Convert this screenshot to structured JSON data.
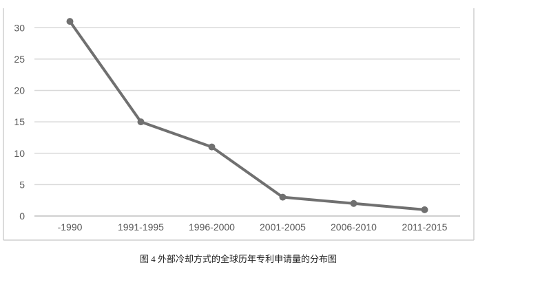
{
  "caption": "图 4 外部冷却方式的全球历年专利申请量的分布图",
  "colors": {
    "line": "#707070",
    "grid": "#d9d9d9",
    "axis": "#bfbfbf",
    "frame": "#cfcfcf"
  },
  "chart_data": {
    "type": "line",
    "categories": [
      "-1990",
      "1991-1995",
      "1996-2000",
      "2001-2005",
      "2006-2010",
      "2011-2015"
    ],
    "series": [
      {
        "values": [
          31,
          15,
          11,
          3,
          2,
          1
        ]
      }
    ],
    "yticks": [
      "0",
      "5",
      "10",
      "15",
      "20",
      "25",
      "30"
    ],
    "ylim": [
      0,
      32
    ],
    "grid": true,
    "legend": "none"
  }
}
